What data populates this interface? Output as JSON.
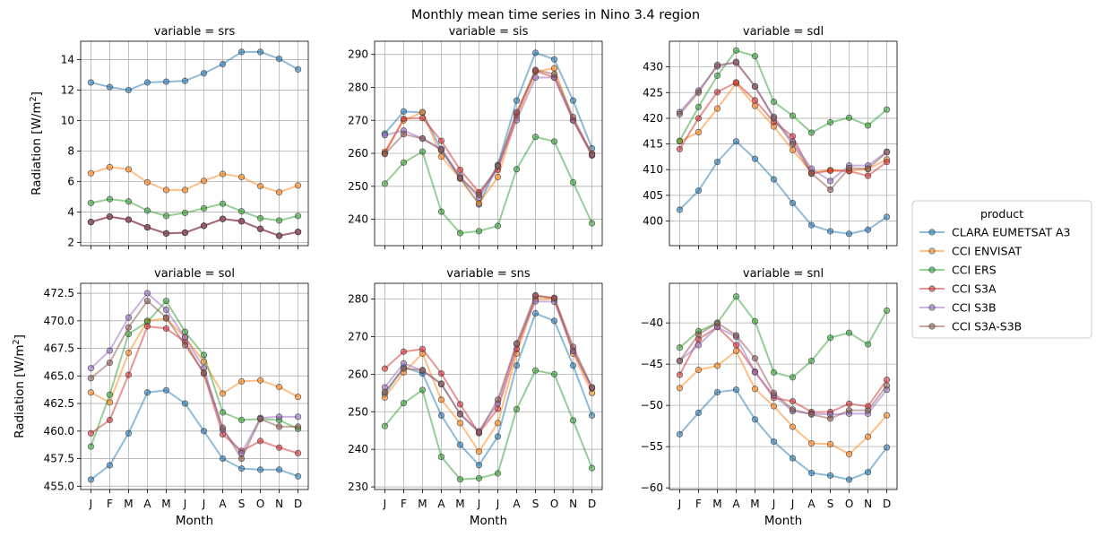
{
  "chart_data": {
    "type": "line",
    "title": "Monthly mean time series in Nino 3.4 region",
    "legend": {
      "title": "product",
      "placement": "right",
      "entries": [
        "CLARA EUMETSAT A3",
        "CCI ENVISAT",
        "CCI ERS",
        "CCI S3A",
        "CCI S3B",
        "CCI S3A-S3B"
      ]
    },
    "colors": [
      "#1f77b4",
      "#ff7f0e",
      "#2ca02c",
      "#d62728",
      "#9467bd",
      "#8c564b"
    ],
    "x": [
      "J",
      "F",
      "M",
      "A",
      "M",
      "J",
      "J",
      "A",
      "S",
      "O",
      "N",
      "D"
    ],
    "xlabel": "Month",
    "ylabel_prefix": "Radiation [W/m",
    "ylabel_exp": "2",
    "ylabel_suffix": "]",
    "panels": [
      {
        "title": "variable = srs",
        "ylim": [
          1.8,
          15.2
        ],
        "yticks": [
          2,
          4,
          6,
          8,
          10,
          12,
          14
        ],
        "yticklabels": [
          "2",
          "4",
          "6",
          "8",
          "10",
          "12",
          "14"
        ],
        "series": [
          {
            "name": "CLARA EUMETSAT A3",
            "values": [
              12.5,
              12.2,
              12.0,
              12.5,
              12.55,
              12.6,
              13.1,
              13.7,
              14.5,
              14.5,
              14.05,
              13.35
            ]
          },
          {
            "name": "CCI ENVISAT",
            "values": [
              6.55,
              6.95,
              6.8,
              5.95,
              5.45,
              5.45,
              6.05,
              6.5,
              6.3,
              5.7,
              5.3,
              5.75
            ]
          },
          {
            "name": "CCI ERS",
            "values": [
              4.6,
              4.85,
              4.7,
              4.1,
              3.75,
              3.95,
              4.25,
              4.55,
              4.05,
              3.6,
              3.45,
              3.75
            ]
          },
          {
            "name": "CCI S3A",
            "values": [
              3.35,
              3.7,
              3.5,
              3.0,
              2.6,
              2.65,
              3.1,
              3.55,
              3.4,
              2.9,
              2.45,
              2.7
            ]
          },
          {
            "name": "CCI S3B",
            "values": [
              3.35,
              3.7,
              3.5,
              3.0,
              2.6,
              2.65,
              3.1,
              3.55,
              3.4,
              2.9,
              2.45,
              2.7
            ]
          },
          {
            "name": "CCI S3A-S3B",
            "values": [
              3.35,
              3.7,
              3.5,
              3.0,
              2.6,
              2.65,
              3.1,
              3.55,
              3.4,
              2.9,
              2.45,
              2.7
            ]
          }
        ]
      },
      {
        "title": "variable = sis",
        "ylim": [
          232,
          294
        ],
        "yticks": [
          240,
          250,
          260,
          270,
          280,
          290
        ],
        "yticklabels": [
          "240",
          "250",
          "260",
          "270",
          "280",
          "290"
        ],
        "series": [
          {
            "name": "CLARA EUMETSAT A3",
            "values": [
              266.0,
              272.7,
              272.4,
              261.0,
              252.5,
              244.5,
              256.5,
              276.0,
              290.5,
              288.5,
              276.0,
              261.5
            ]
          },
          {
            "name": "CCI ENVISAT",
            "values": [
              260.5,
              270.0,
              272.5,
              259.0,
              252.3,
              244.8,
              252.8,
              271.0,
              284.8,
              285.8,
              270.0,
              260.0
            ]
          },
          {
            "name": "CCI ERS",
            "values": [
              250.8,
              257.2,
              260.5,
              242.3,
              235.8,
              236.4,
              238.0,
              255.2,
              265.0,
              263.6,
              251.2,
              238.8
            ]
          },
          {
            "name": "CCI S3A",
            "values": [
              260.0,
              270.5,
              270.7,
              263.8,
              255.0,
              248.2,
              255.0,
              272.0,
              285.0,
              283.0,
              270.0,
              259.5
            ]
          },
          {
            "name": "CCI S3B",
            "values": [
              265.5,
              266.9,
              264.5,
              261.4,
              253.0,
              246.5,
              256.0,
              270.0,
              283.0,
              283.0,
              270.0,
              259.3
            ]
          },
          {
            "name": "CCI S3A-S3B",
            "values": [
              259.8,
              265.8,
              264.5,
              261.0,
              252.5,
              247.4,
              256.2,
              272.5,
              285.3,
              284.0,
              271.0,
              259.6
            ]
          }
        ]
      },
      {
        "title": "variable = sdl",
        "ylim": [
          395.2,
          435.0
        ],
        "yticks": [
          400,
          405,
          410,
          415,
          420,
          425,
          430
        ],
        "yticklabels": [
          "400",
          "405",
          "410",
          "415",
          "420",
          "425",
          "430"
        ],
        "series": [
          {
            "name": "CLARA EUMETSAT A3",
            "values": [
              402.2,
              405.9,
              411.5,
              415.5,
              412.1,
              408.1,
              403.5,
              399.2,
              398.0,
              397.5,
              398.3,
              400.8
            ]
          },
          {
            "name": "CCI ENVISAT",
            "values": [
              415.5,
              417.3,
              421.9,
              426.8,
              422.4,
              418.4,
              413.8,
              409.5,
              409.9,
              409.8,
              410.1,
              412.0
            ]
          },
          {
            "name": "CCI ERS",
            "values": [
              415.6,
              422.2,
              428.3,
              433.2,
              432.1,
              423.2,
              420.5,
              417.2,
              419.2,
              420.1,
              418.6,
              421.7
            ]
          },
          {
            "name": "CCI S3A",
            "values": [
              414.0,
              420.0,
              425.1,
              427.0,
              423.5,
              419.3,
              416.5,
              409.2,
              409.8,
              409.7,
              408.8,
              411.5
            ]
          },
          {
            "name": "CCI S3B",
            "values": [
              421.2,
              425.4,
              430.1,
              431.0,
              426.2,
              420.3,
              415.4,
              410.2,
              407.8,
              410.8,
              410.8,
              413.5
            ]
          },
          {
            "name": "CCI S3A-S3B",
            "values": [
              420.8,
              425.0,
              430.4,
              430.8,
              426.2,
              420.0,
              415.0,
              409.3,
              406.1,
              410.3,
              410.2,
              413.4
            ]
          }
        ]
      },
      {
        "title": "variable = sol",
        "ylim": [
          454.7,
          473.4
        ],
        "yticks": [
          455.0,
          457.5,
          460.0,
          462.5,
          465.0,
          467.5,
          470.0,
          472.5
        ],
        "yticklabels": [
          "455.0",
          "457.5",
          "460.0",
          "462.5",
          "465.0",
          "467.5",
          "470.0",
          "472.5"
        ],
        "series": [
          {
            "name": "CLARA EUMETSAT A3",
            "values": [
              455.6,
              456.9,
              459.8,
              463.5,
              463.7,
              462.5,
              460.0,
              457.5,
              456.6,
              456.5,
              456.5,
              455.9
            ]
          },
          {
            "name": "CCI ENVISAT",
            "values": [
              463.5,
              462.6,
              467.1,
              470.0,
              470.2,
              468.5,
              466.3,
              463.4,
              464.5,
              464.6,
              464.0,
              463.1
            ]
          },
          {
            "name": "CCI ERS",
            "values": [
              458.6,
              463.3,
              468.8,
              469.9,
              471.8,
              469.0,
              466.9,
              461.7,
              461.0,
              461.1,
              461.0,
              460.2
            ]
          },
          {
            "name": "CCI S3A",
            "values": [
              459.8,
              461.0,
              465.1,
              469.5,
              469.3,
              468.1,
              465.2,
              459.7,
              458.2,
              459.1,
              458.5,
              458.0
            ]
          },
          {
            "name": "CCI S3B",
            "values": [
              465.7,
              467.3,
              470.3,
              472.5,
              471.0,
              468.5,
              465.7,
              460.1,
              458.0,
              461.2,
              461.3,
              461.3
            ]
          },
          {
            "name": "CCI S3A-S3B",
            "values": [
              464.8,
              466.2,
              469.4,
              471.8,
              470.3,
              467.8,
              465.3,
              460.3,
              457.5,
              461.1,
              460.4,
              460.4
            ]
          }
        ]
      },
      {
        "title": "variable = sns",
        "ylim": [
          229.3,
          284.2
        ],
        "yticks": [
          230,
          240,
          250,
          260,
          270,
          280
        ],
        "yticklabels": [
          "230",
          "240",
          "250",
          "260",
          "270",
          "280"
        ],
        "series": [
          {
            "name": "CLARA EUMETSAT A3",
            "values": [
              254.7,
              261.9,
              260.2,
              249.0,
              241.2,
              235.8,
              243.4,
              262.3,
              276.2,
              274.2,
              262.3,
              249.0
            ]
          },
          {
            "name": "CCI ENVISAT",
            "values": [
              253.8,
              260.5,
              265.5,
              253.2,
              247.0,
              239.4,
              247.0,
              265.5,
              280.0,
              280.0,
              265.5,
              255.0
            ]
          },
          {
            "name": "CCI ERS",
            "values": [
              246.2,
              252.3,
              255.8,
              238.0,
              232.0,
              232.3,
              233.6,
              250.7,
              261.0,
              260.0,
              247.7,
              235.0
            ]
          },
          {
            "name": "CCI S3A",
            "values": [
              261.5,
              266.0,
              266.7,
              260.2,
              252.0,
              244.3,
              250.8,
              266.7,
              280.8,
              280.3,
              266.3,
              256.2
            ]
          },
          {
            "name": "CCI S3B",
            "values": [
              256.5,
              262.9,
              260.9,
              257.3,
              249.5,
              244.8,
              252.2,
              268.0,
              279.4,
              279.3,
              266.2,
              256.5
            ]
          },
          {
            "name": "CCI S3A-S3B",
            "values": [
              255.3,
              261.5,
              261.1,
              257.5,
              249.3,
              244.5,
              253.2,
              268.2,
              281.0,
              280.3,
              267.3,
              256.5
            ]
          }
        ]
      },
      {
        "title": "variable = snl",
        "ylim": [
          -60.2,
          -35.2
        ],
        "yticks": [
          -60,
          -55,
          -50,
          -45,
          -40
        ],
        "yticklabels": [
          "−60",
          "−55",
          "−50",
          "−45",
          "−40"
        ],
        "series": [
          {
            "name": "CLARA EUMETSAT A3",
            "values": [
              -53.5,
              -50.9,
              -48.4,
              -48.1,
              -51.7,
              -54.4,
              -56.4,
              -58.2,
              -58.5,
              -59.0,
              -58.1,
              -55.1
            ]
          },
          {
            "name": "CCI ENVISAT",
            "values": [
              -47.9,
              -45.7,
              -45.2,
              -43.4,
              -48.0,
              -50.1,
              -52.6,
              -54.6,
              -54.7,
              -55.9,
              -53.8,
              -51.2
            ]
          },
          {
            "name": "CCI ERS",
            "values": [
              -43.0,
              -41.0,
              -40.0,
              -36.8,
              -39.8,
              -46.0,
              -46.6,
              -44.6,
              -41.8,
              -41.2,
              -42.6,
              -38.5
            ]
          },
          {
            "name": "CCI S3A",
            "values": [
              -46.3,
              -42.0,
              -40.5,
              -42.7,
              -45.9,
              -49.1,
              -49.5,
              -50.8,
              -50.8,
              -49.8,
              -50.1,
              -46.9
            ]
          },
          {
            "name": "CCI S3B",
            "values": [
              -44.6,
              -42.7,
              -40.5,
              -41.7,
              -46.0,
              -48.8,
              -50.7,
              -51.0,
              -51.1,
              -51.0,
              -51.0,
              -48.1
            ]
          },
          {
            "name": "CCI S3A-S3B",
            "values": [
              -44.6,
              -41.4,
              -40.0,
              -41.5,
              -44.3,
              -48.5,
              -50.5,
              -51.1,
              -51.6,
              -50.6,
              -50.6,
              -47.6
            ]
          }
        ]
      }
    ]
  }
}
